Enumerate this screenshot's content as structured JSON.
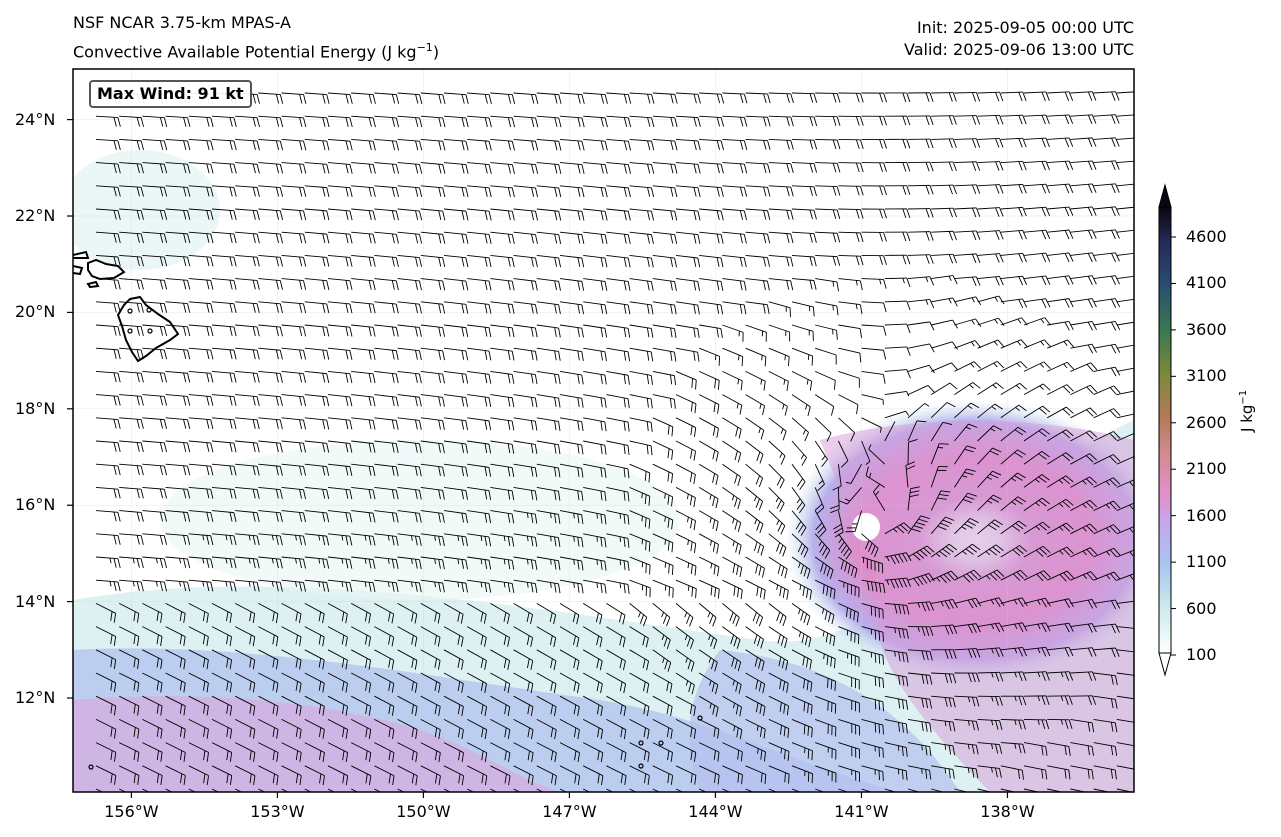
{
  "header": {
    "model": "NSF NCAR 3.75-km MPAS-A",
    "field": "Convective Available Potential Energy (J kg",
    "field_sup": "−1",
    "field_close": ")",
    "init": "Init: 2025-09-05 00:00 UTC",
    "valid": "Valid: 2025-09-06 13:00 UTC"
  },
  "annotation": {
    "max_wind": "Max Wind: 91 kt"
  },
  "map": {
    "lon_range": [
      -157.2,
      -135.4
    ],
    "lat_range": [
      10.05,
      25.05
    ],
    "lat_ticks": [
      "24°N",
      "22°N",
      "20°N",
      "18°N",
      "16°N",
      "14°N",
      "12°N"
    ],
    "lon_ticks": [
      "156°W",
      "153°W",
      "150°W",
      "147°W",
      "144°W",
      "141°W",
      "138°W"
    ],
    "cyclone_center": {
      "lon": -140.7,
      "lat": 15.5
    },
    "wind_barbs": "symbol-wind-barbs"
  },
  "colorbar": {
    "label": "J kg",
    "label_sup": "−1",
    "ticks": [
      "4600",
      "4100",
      "3600",
      "3100",
      "2600",
      "2100",
      "1600",
      "1100",
      "600",
      "100"
    ],
    "extend": "both",
    "colors": [
      "#ffffff",
      "#c8e8ec",
      "#a8c8f0",
      "#c8a8e8",
      "#e090c8",
      "#d88898",
      "#b88060",
      "#8a8a40",
      "#3a7a50",
      "#2a5a70",
      "#283060",
      "#101020"
    ]
  }
}
